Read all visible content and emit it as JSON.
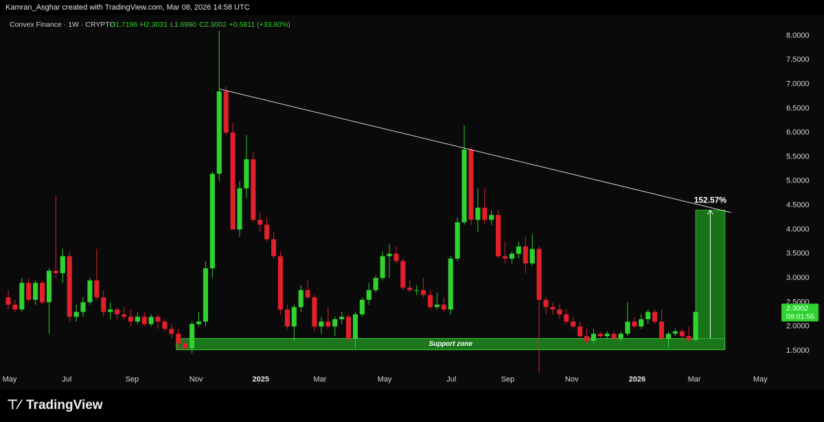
{
  "header": {
    "credit": "Kamran_Asghar created with TradingView.com, Mar 08, 2026 14:58 UTC"
  },
  "chart_data": {
    "type": "candlestick",
    "symbol": "Convex Finance · 1W · CRYPTO",
    "ohlc_text": [
      "O1.7196",
      "H2.3031",
      "L1.6990",
      "C2.3002",
      "+0.5811 (+33.80%)"
    ],
    "up_color": "#2fd22f",
    "down_color": "#e0202a",
    "open": [
      2.6,
      2.45,
      2.35,
      2.9,
      2.55,
      2.9,
      2.5,
      3.15,
      3.1,
      3.45,
      2.2,
      2.3,
      2.5,
      2.95,
      2.6,
      2.3,
      2.35,
      2.25,
      2.2,
      2.1,
      2.2,
      2.05,
      2.2,
      2.1,
      1.95,
      1.85,
      1.65,
      1.55,
      2.05,
      2.1,
      3.2,
      5.15,
      6.85,
      6.0,
      4.0,
      4.85,
      5.45,
      4.2,
      4.1,
      3.8,
      3.45,
      2.35,
      2.0,
      2.4,
      2.75,
      2.6,
      2.0,
      2.1,
      2.0,
      2.15,
      2.2,
      1.75,
      2.25,
      2.55,
      2.75,
      3.0,
      3.45,
      3.5,
      3.35,
      2.8,
      2.75,
      2.75,
      2.65,
      2.4,
      2.45,
      2.35,
      3.4,
      4.15,
      5.65,
      4.2,
      4.45,
      4.2,
      4.3,
      3.45,
      3.4,
      3.5,
      3.65,
      3.3,
      3.6,
      2.55,
      2.4,
      2.35,
      2.25,
      2.1,
      2.0,
      1.8,
      1.7,
      1.85,
      1.8,
      1.85,
      1.75,
      1.85,
      2.1,
      2.0,
      2.15,
      2.3,
      2.1,
      1.75,
      1.85,
      1.9,
      1.8,
      1.7196
    ],
    "high": [
      2.75,
      2.55,
      3.0,
      3.0,
      2.95,
      2.95,
      3.2,
      4.7,
      3.6,
      3.55,
      2.45,
      2.6,
      3.0,
      3.6,
      2.75,
      2.5,
      2.4,
      2.4,
      2.35,
      2.3,
      2.3,
      2.25,
      2.25,
      2.15,
      2.05,
      1.95,
      1.75,
      2.1,
      2.3,
      3.35,
      5.2,
      8.1,
      6.95,
      6.2,
      5.0,
      5.95,
      5.6,
      4.35,
      4.25,
      3.95,
      3.55,
      2.45,
      2.45,
      2.85,
      2.95,
      2.65,
      2.2,
      2.4,
      2.2,
      2.3,
      2.25,
      2.3,
      2.6,
      2.9,
      3.05,
      3.55,
      3.7,
      3.65,
      3.4,
      2.95,
      2.85,
      3.0,
      2.75,
      2.7,
      2.6,
      3.45,
      4.25,
      6.15,
      5.7,
      4.85,
      4.85,
      4.4,
      4.4,
      3.75,
      3.55,
      3.75,
      3.85,
      3.9,
      3.65,
      2.6,
      2.5,
      2.45,
      2.35,
      2.2,
      2.1,
      1.95,
      1.95,
      1.9,
      1.9,
      1.9,
      1.9,
      2.5,
      2.2,
      2.25,
      2.35,
      2.35,
      2.35,
      1.9,
      1.95,
      1.95,
      2.0,
      2.3031
    ],
    "low": [
      2.35,
      2.3,
      2.3,
      2.5,
      2.45,
      2.45,
      1.85,
      3.0,
      2.9,
      2.1,
      2.1,
      2.2,
      2.45,
      2.55,
      2.2,
      2.15,
      2.15,
      2.15,
      2.0,
      2.05,
      2.0,
      2.0,
      1.95,
      1.9,
      1.75,
      1.5,
      1.52,
      1.45,
      2.0,
      2.0,
      3.0,
      5.0,
      5.95,
      4.0,
      3.85,
      4.65,
      4.15,
      3.95,
      3.75,
      3.4,
      2.25,
      1.95,
      1.7,
      2.3,
      2.55,
      1.9,
      1.85,
      1.95,
      1.8,
      2.05,
      1.7,
      1.55,
      2.2,
      2.45,
      2.7,
      2.95,
      3.0,
      3.3,
      2.75,
      2.7,
      2.65,
      2.6,
      2.35,
      2.35,
      2.3,
      2.25,
      3.35,
      4.1,
      4.1,
      3.95,
      4.1,
      4.1,
      3.4,
      3.3,
      3.3,
      3.4,
      3.1,
      3.25,
      1.05,
      2.25,
      2.25,
      2.15,
      2.05,
      1.95,
      1.7,
      1.65,
      1.65,
      1.75,
      1.75,
      1.7,
      1.7,
      1.8,
      1.95,
      1.95,
      2.05,
      2.05,
      1.7,
      1.55,
      1.8,
      1.75,
      1.68,
      1.699
    ],
    "close": [
      2.45,
      2.35,
      2.9,
      2.55,
      2.9,
      2.5,
      3.15,
      3.1,
      3.45,
      2.2,
      2.3,
      2.5,
      2.95,
      2.6,
      2.3,
      2.35,
      2.25,
      2.2,
      2.1,
      2.2,
      2.05,
      2.2,
      2.1,
      1.95,
      1.85,
      1.65,
      1.55,
      2.05,
      2.1,
      3.2,
      5.15,
      6.85,
      6.0,
      4.0,
      4.85,
      5.45,
      4.2,
      4.1,
      3.8,
      3.45,
      2.35,
      2.0,
      2.4,
      2.75,
      2.6,
      2.0,
      2.1,
      2.0,
      2.15,
      2.2,
      1.75,
      2.25,
      2.55,
      2.75,
      3.0,
      3.45,
      3.5,
      3.35,
      2.8,
      2.75,
      2.75,
      2.65,
      2.4,
      2.45,
      2.35,
      3.4,
      4.15,
      5.65,
      4.2,
      4.45,
      4.2,
      4.3,
      3.45,
      3.4,
      3.5,
      3.65,
      3.3,
      3.6,
      2.55,
      2.4,
      2.35,
      2.25,
      2.1,
      2.0,
      1.8,
      1.7,
      1.85,
      1.8,
      1.85,
      1.75,
      1.85,
      2.1,
      2.0,
      2.15,
      2.3,
      2.1,
      1.75,
      1.85,
      1.9,
      1.8,
      1.72,
      2.3002
    ],
    "xlim": [
      -1.21,
      113.3
    ],
    "xticks": [
      {
        "value": 0.2,
        "label": "May"
      },
      {
        "value": 8.6,
        "label": "Jul"
      },
      {
        "value": 18.2,
        "label": "Sep"
      },
      {
        "value": 27.6,
        "label": "Nov"
      },
      {
        "value": 37.1,
        "label": "2025"
      },
      {
        "value": 45.8,
        "label": "Mar"
      },
      {
        "value": 55.3,
        "label": "May"
      },
      {
        "value": 65.1,
        "label": "Jul"
      },
      {
        "value": 73.4,
        "label": "Sep"
      },
      {
        "value": 82.8,
        "label": "Nov"
      },
      {
        "value": 92.4,
        "label": "2026"
      },
      {
        "value": 100.8,
        "label": "Mar"
      },
      {
        "value": 110.5,
        "label": "May"
      }
    ],
    "ylim": [
      1.02,
      8.31
    ],
    "yticks": [
      {
        "value": 1.5,
        "label": "1.5000"
      },
      {
        "value": 2,
        "label": "2.0000"
      },
      {
        "value": 2.5,
        "label": "2.5000"
      },
      {
        "value": 3,
        "label": "3.0000"
      },
      {
        "value": 3.5,
        "label": "3.5000"
      },
      {
        "value": 4,
        "label": "4.0000"
      },
      {
        "value": 4.5,
        "label": "4.5000"
      },
      {
        "value": 5,
        "label": "5.0000"
      },
      {
        "value": 5.5,
        "label": "5.5000"
      },
      {
        "value": 6,
        "label": "6.0000"
      },
      {
        "value": 6.5,
        "label": "6.5000"
      },
      {
        "value": 7,
        "label": "7.0000"
      },
      {
        "value": 7.5,
        "label": "7.5000"
      },
      {
        "value": 8,
        "label": "8.0000"
      }
    ],
    "grid": false,
    "last_price": 2.3002,
    "countdown": "09:01:55",
    "trendline": {
      "x": [
        31,
        106.2
      ],
      "y": [
        6.9,
        4.35
      ]
    },
    "support_zone": {
      "label": "Support zone",
      "x": [
        24.7,
        105.3
      ],
      "y": [
        1.52,
        1.75
      ]
    },
    "measure": {
      "label": "152.57%",
      "x": [
        101,
        105.3
      ],
      "y": [
        1.75,
        4.4
      ]
    }
  },
  "footer": {
    "brand": "TradingView"
  }
}
